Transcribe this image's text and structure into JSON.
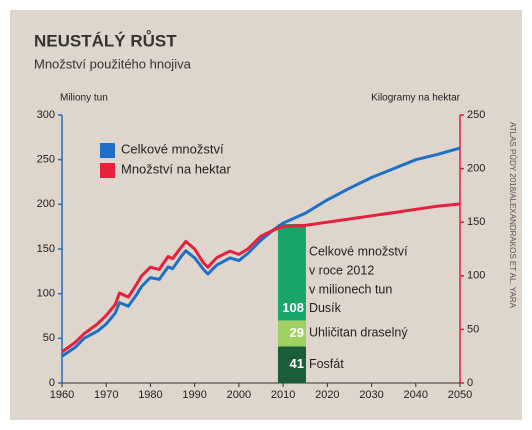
{
  "chart_data": {
    "type": "line",
    "title": "NEUSTÁLÝ RŮST",
    "subtitle": "Množství použitého hnojiva",
    "y_label": "Miliony tun",
    "y2_label": "Kilogramy na hektar",
    "source": "ATLAS PŮDY 2018/ALEXANDRAKOS ET AL. YARA",
    "x": [
      1960,
      1963,
      1965,
      1968,
      1970,
      1972,
      1973,
      1975,
      1977,
      1978,
      1980,
      1982,
      1984,
      1985,
      1987,
      1988,
      1990,
      1992,
      1993,
      1995,
      1998,
      2000,
      2002,
      2005,
      2008,
      2010,
      2015,
      2020,
      2025,
      2030,
      2035,
      2040,
      2045,
      2050
    ],
    "series": [
      {
        "name": "Celkové množství",
        "color": "#1f6fc5",
        "values": [
          30,
          40,
          50,
          58,
          66,
          78,
          90,
          86,
          100,
          108,
          118,
          116,
          130,
          128,
          142,
          148,
          140,
          127,
          122,
          132,
          140,
          137,
          145,
          160,
          172,
          179,
          190,
          205,
          218,
          230,
          240,
          250,
          256,
          263
        ]
      },
      {
        "name": "Množství na hektar",
        "color": "#e8203c",
        "axis": "y2",
        "values": [
          29,
          38,
          46,
          55,
          63,
          73,
          84,
          80,
          93,
          100,
          108,
          106,
          118,
          116,
          127,
          132,
          125,
          112,
          108,
          117,
          123,
          120,
          125,
          137,
          143,
          146,
          147,
          150,
          153,
          156,
          159,
          162,
          165,
          167
        ]
      }
    ],
    "xlim": [
      1960,
      2050
    ],
    "xticks": [
      1960,
      1970,
      1980,
      1990,
      2000,
      2010,
      2020,
      2030,
      2040,
      2050
    ],
    "ylim": [
      0,
      300
    ],
    "yticks": [
      0,
      50,
      100,
      150,
      200,
      250,
      300
    ],
    "y2lim": [
      0,
      250
    ],
    "y2ticks": [
      0,
      50,
      100,
      150,
      200,
      250
    ],
    "bar": {
      "x": 2012,
      "annotation": [
        "Celkové množství",
        "v roce 2012",
        "v milionech tun"
      ],
      "segments": [
        {
          "name": "Fosfát",
          "value": 41,
          "color": "#1b5e37"
        },
        {
          "name": "Uhličitan draselný",
          "value": 29,
          "color": "#9fd060"
        },
        {
          "name": "Dusík",
          "value": 108,
          "color": "#1aa56b"
        }
      ]
    }
  }
}
